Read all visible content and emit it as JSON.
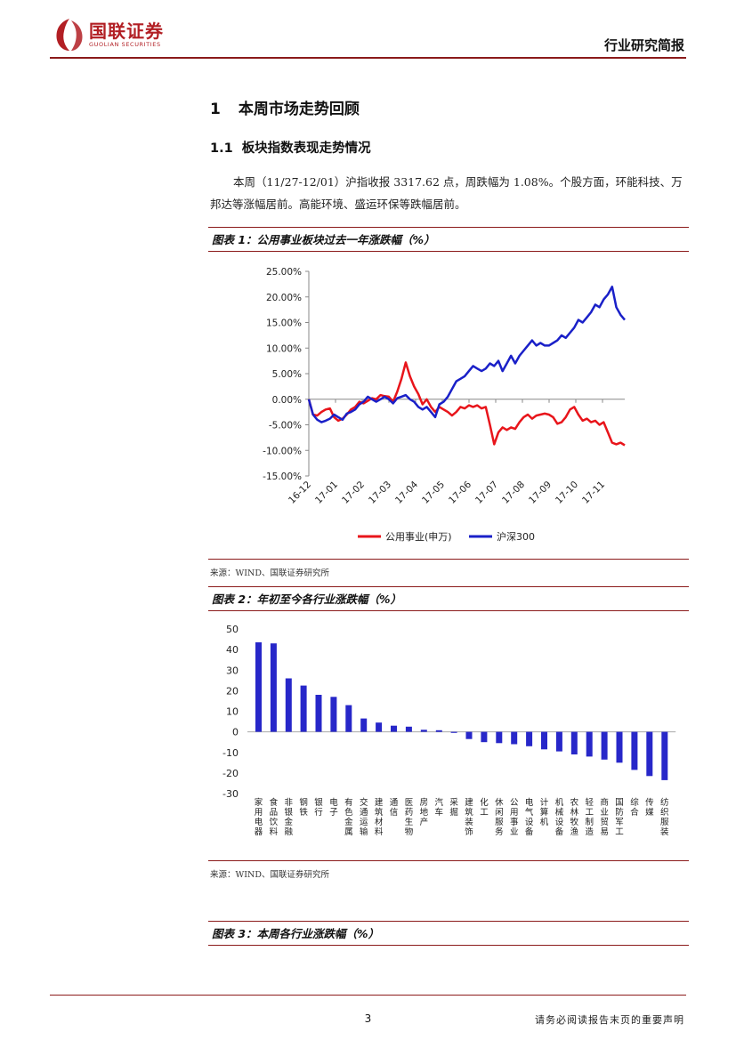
{
  "header": {
    "logo_cn": "国联证券",
    "logo_en": "GUOLIAN SECURITIES",
    "doc_type": "行业研究简报"
  },
  "section1": {
    "num": "1",
    "title": "本周市场走势回顾"
  },
  "section11": {
    "num": "1.1",
    "title": "板块指数表现走势情况"
  },
  "paragraph": "本周（11/27-12/01）沪指收报 3317.62 点，周跌幅为 1.08%。个股方面，环能科技、万邦达等涨幅居前。高能环境、盛运环保等跌幅居前。",
  "figure1": {
    "caption": "图表 1：公用事业板块过去一年涨跌幅（%）",
    "source": "来源：WIND、国联证券研究所"
  },
  "figure2": {
    "caption": "图表 2：年初至今各行业涨跌幅（%）",
    "source": "来源：WIND、国联证券研究所"
  },
  "figure3": {
    "caption": "图表 3：本周各行业涨跌幅（%）"
  },
  "footer": {
    "page": "3",
    "disclaimer": "请务必阅读报告末页的重要声明"
  },
  "colors": {
    "brand": "#b21f24",
    "rule": "#8b1a1a",
    "series_red": "#e8151b",
    "series_blue": "#1a20c8",
    "bars": "#2727c9"
  },
  "chart_data": [
    {
      "type": "line",
      "title": "",
      "ylim": [
        -15,
        25
      ],
      "y_ticks": [
        "25.00%",
        "20.00%",
        "15.00%",
        "10.00%",
        "5.00%",
        "0.00%",
        "-5.00%",
        "-10.00%",
        "-15.00%"
      ],
      "x_ticks": [
        "16-12",
        "17-01",
        "17-02",
        "17-03",
        "17-04",
        "17-05",
        "17-06",
        "17-07",
        "17-08",
        "17-09",
        "17-10",
        "17-11"
      ],
      "legend_position": "bottom",
      "series": [
        {
          "name": "公用事业(申万)",
          "values": [
            0,
            -3,
            -3.2,
            -2.5,
            -2,
            -1.8,
            -3.5,
            -4.2,
            -3.8,
            -3,
            -2,
            -1.5,
            -0.5,
            -0.8,
            -0.3,
            0.2,
            0,
            0.8,
            0.6,
            0.5,
            -0.5,
            1.5,
            4,
            7.2,
            4.5,
            2.5,
            1,
            -1,
            0,
            -1.5,
            -2.5,
            -1.5,
            -2,
            -2.5,
            -3.2,
            -2.5,
            -1.5,
            -1.8,
            -1.2,
            -1.5,
            -1.2,
            -1.8,
            -1.5,
            -5,
            -8.8,
            -6.5,
            -5.5,
            -6,
            -5.5,
            -5.8,
            -4.5,
            -3.5,
            -3,
            -3.8,
            -3.2,
            -3,
            -2.8,
            -3,
            -3.5,
            -4.8,
            -4.5,
            -3.5,
            -2,
            -1.5,
            -3,
            -4.2,
            -3.8,
            -4.5,
            -4.2,
            -5,
            -4.5,
            -6.5,
            -8.5,
            -8.8,
            -8.5,
            -9
          ]
        },
        {
          "name": "沪深300",
          "values": [
            0,
            -3,
            -4,
            -4.5,
            -4.2,
            -3.8,
            -3,
            -3.5,
            -4,
            -2.8,
            -2.5,
            -2,
            -1,
            -0.5,
            0.5,
            0,
            -0.5,
            0,
            0.5,
            0,
            -0.8,
            0.2,
            0.5,
            0.8,
            0,
            -0.5,
            -1.5,
            -2,
            -1.5,
            -2.5,
            -3.5,
            -1,
            -0.5,
            0.5,
            2,
            3.5,
            4,
            4.5,
            5.5,
            6.5,
            6,
            5.5,
            6,
            7,
            6.5,
            7.5,
            5.5,
            7,
            8.5,
            7,
            8.5,
            9.5,
            10.5,
            11.5,
            10.5,
            11,
            10.5,
            10.5,
            11,
            11.5,
            12.5,
            12,
            13,
            14,
            15.5,
            15,
            16,
            17,
            18.5,
            18,
            19.5,
            20.5,
            22,
            18,
            16.5,
            15.5
          ]
        }
      ]
    },
    {
      "type": "bar",
      "title": "",
      "ylim": [
        -30,
        50
      ],
      "y_ticks": [
        "50",
        "40",
        "30",
        "20",
        "10",
        "0",
        "-10",
        "-20",
        "-30"
      ],
      "categories": [
        "家用电器",
        "食品饮料",
        "非银金融",
        "钢铁",
        "银行",
        "电子",
        "有色金属",
        "交通运输",
        "建筑材料",
        "通信",
        "医药生物",
        "房地产",
        "汽车",
        "采掘",
        "建筑装饰",
        "化工",
        "休闲服务",
        "公用事业",
        "电气设备",
        "计算机",
        "机械设备",
        "农林牧渔",
        "轻工制造",
        "商业贸易",
        "国防军工",
        "综合",
        "传媒",
        "纺织服装"
      ],
      "values": [
        43.5,
        43,
        26,
        22.5,
        18,
        17,
        13,
        6.5,
        4.5,
        3,
        2.5,
        1,
        0.8,
        -0.5,
        -3.5,
        -5,
        -5.5,
        -6,
        -7,
        -8.5,
        -9.5,
        -11,
        -12,
        -13.5,
        -15,
        -18.5,
        -21.5,
        -23.5
      ]
    }
  ]
}
